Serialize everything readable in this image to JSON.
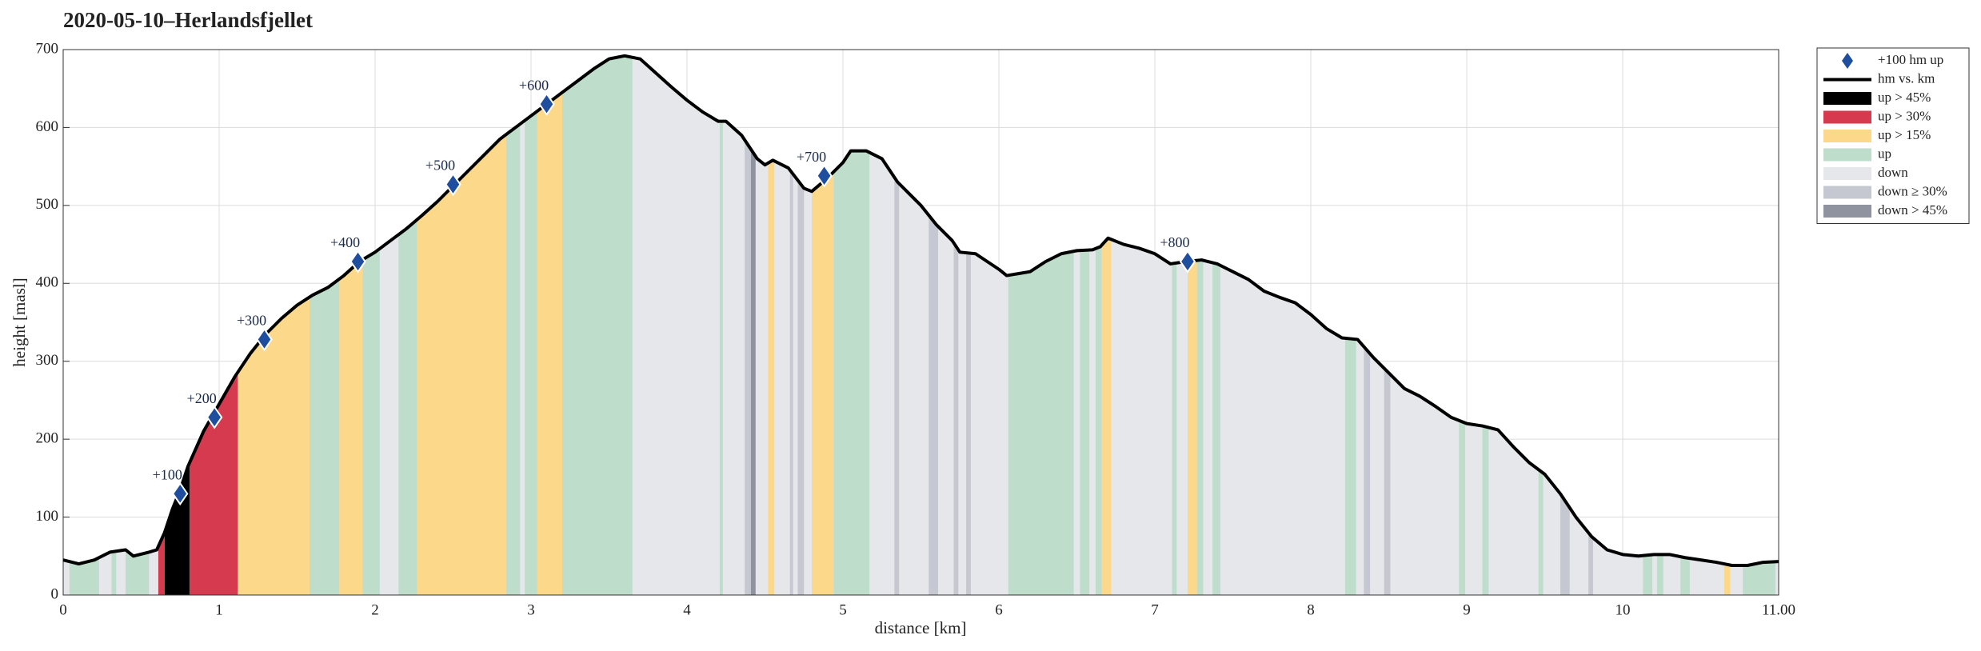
{
  "chart_data": {
    "type": "area",
    "title": "2020-05-10–Herlandsfjellet",
    "xlabel": "distance [km]",
    "ylabel": "height [masl]",
    "xlim": [
      0,
      11
    ],
    "ylim": [
      0,
      700
    ],
    "xticks": [
      0,
      1,
      2,
      3,
      4,
      5,
      6,
      7,
      8,
      9,
      10,
      {
        "value": 11,
        "label": "11.00"
      }
    ],
    "yticks": [
      0,
      100,
      200,
      300,
      400,
      500,
      600,
      700
    ],
    "grid": true,
    "base": {
      "name": "down",
      "color": "#e6e7ea"
    },
    "profile": {
      "name": "hm vs. km",
      "color": "#000000",
      "x": [
        0,
        0.1,
        0.2,
        0.3,
        0.4,
        0.45,
        0.55,
        0.6,
        0.65,
        0.7,
        0.75,
        0.8,
        0.9,
        1.0,
        1.1,
        1.2,
        1.3,
        1.4,
        1.5,
        1.6,
        1.7,
        1.8,
        1.9,
        2.0,
        2.1,
        2.2,
        2.3,
        2.4,
        2.5,
        2.6,
        2.7,
        2.8,
        2.9,
        3.0,
        3.1,
        3.2,
        3.3,
        3.4,
        3.5,
        3.6,
        3.7,
        3.8,
        3.9,
        4.0,
        4.1,
        4.2,
        4.25,
        4.35,
        4.45,
        4.5,
        4.55,
        4.65,
        4.75,
        4.8,
        4.9,
        5.0,
        5.05,
        5.15,
        5.25,
        5.35,
        5.5,
        5.6,
        5.7,
        5.75,
        5.85,
        6.0,
        6.05,
        6.2,
        6.3,
        6.4,
        6.5,
        6.6,
        6.65,
        6.7,
        6.8,
        6.9,
        7.0,
        7.1,
        7.2,
        7.3,
        7.4,
        7.5,
        7.6,
        7.7,
        7.8,
        7.9,
        8.0,
        8.1,
        8.2,
        8.3,
        8.4,
        8.5,
        8.6,
        8.7,
        8.8,
        8.9,
        9.0,
        9.1,
        9.2,
        9.3,
        9.4,
        9.5,
        9.6,
        9.7,
        9.8,
        9.9,
        10.0,
        10.1,
        10.2,
        10.3,
        10.4,
        10.5,
        10.6,
        10.7,
        10.8,
        10.9,
        11.0
      ],
      "values": [
        45,
        40,
        45,
        55,
        58,
        50,
        55,
        58,
        80,
        110,
        135,
        165,
        210,
        245,
        280,
        310,
        335,
        355,
        372,
        385,
        395,
        410,
        428,
        440,
        455,
        470,
        487,
        505,
        525,
        545,
        565,
        585,
        600,
        615,
        630,
        645,
        660,
        675,
        688,
        692,
        688,
        670,
        652,
        635,
        620,
        608,
        608,
        590,
        560,
        552,
        558,
        548,
        522,
        518,
        535,
        555,
        570,
        570,
        560,
        530,
        500,
        475,
        455,
        440,
        438,
        418,
        410,
        415,
        428,
        438,
        442,
        443,
        447,
        458,
        450,
        445,
        438,
        425,
        428,
        430,
        425,
        415,
        405,
        390,
        382,
        375,
        360,
        342,
        330,
        328,
        305,
        285,
        265,
        255,
        242,
        228,
        220,
        217,
        212,
        190,
        170,
        155,
        130,
        100,
        75,
        58,
        52,
        50,
        52,
        52,
        48,
        45,
        42,
        38,
        38,
        42,
        43
      ]
    },
    "bands": [
      {
        "name": "up > 45%",
        "color": "#000000",
        "segments": [
          [
            0.65,
            0.81
          ]
        ]
      },
      {
        "name": "up > 30%",
        "color": "#d63a4f",
        "segments": [
          [
            0.61,
            0.65
          ],
          [
            0.81,
            1.12
          ]
        ]
      },
      {
        "name": "up > 15%",
        "color": "#fcd98a",
        "segments": [
          [
            1.12,
            1.58
          ],
          [
            1.77,
            1.92
          ],
          [
            2.27,
            2.84
          ],
          [
            3.04,
            3.2
          ],
          [
            4.52,
            4.56
          ],
          [
            4.8,
            4.94
          ],
          [
            6.25,
            6.29
          ],
          [
            6.66,
            6.72
          ],
          [
            7.21,
            7.27
          ],
          [
            10.65,
            10.69
          ]
        ]
      },
      {
        "name": "up",
        "color": "#bfddcb",
        "segments": [
          [
            0.04,
            0.23
          ],
          [
            0.31,
            0.34
          ],
          [
            0.4,
            0.55
          ],
          [
            1.58,
            1.77
          ],
          [
            1.92,
            2.03
          ],
          [
            2.15,
            2.27
          ],
          [
            2.84,
            2.93
          ],
          [
            2.96,
            3.04
          ],
          [
            3.2,
            3.65
          ],
          [
            4.21,
            4.23
          ],
          [
            4.94,
            5.17
          ],
          [
            6.06,
            6.48
          ],
          [
            6.52,
            6.58
          ],
          [
            6.62,
            6.66
          ],
          [
            7.11,
            7.14
          ],
          [
            7.27,
            7.31
          ],
          [
            7.37,
            7.42
          ],
          [
            8.22,
            8.29
          ],
          [
            8.95,
            8.99
          ],
          [
            9.1,
            9.14
          ],
          [
            9.46,
            9.49
          ],
          [
            10.13,
            10.19
          ],
          [
            10.22,
            10.26
          ],
          [
            10.37,
            10.43
          ],
          [
            10.77,
            10.98
          ]
        ]
      },
      {
        "name": "down ≥ 30%",
        "color": "#c5c8d0",
        "segments": [
          [
            4.37,
            4.41
          ],
          [
            4.66,
            4.68
          ],
          [
            4.71,
            4.75
          ],
          [
            5.33,
            5.36
          ],
          [
            5.55,
            5.61
          ],
          [
            5.71,
            5.74
          ],
          [
            5.79,
            5.82
          ],
          [
            8.34,
            8.38
          ],
          [
            8.47,
            8.51
          ],
          [
            9.6,
            9.66
          ],
          [
            9.78,
            9.81
          ]
        ]
      },
      {
        "name": "down > 45%",
        "color": "#8e939f",
        "segments": [
          [
            4.41,
            4.44
          ]
        ]
      }
    ],
    "markers": {
      "name": "+100 hm up",
      "color": "#1f4e9f",
      "x": [
        0.75,
        0.97,
        1.29,
        1.89,
        2.5,
        3.1,
        4.88,
        7.21
      ],
      "values": [
        130,
        228,
        328,
        428,
        527,
        630,
        538,
        428
      ],
      "labels": [
        "+100",
        "+200",
        "+300",
        "+400",
        "+500",
        "+600",
        "+700",
        "+800"
      ]
    },
    "legend_order": [
      "markers",
      "profile",
      "bands.0",
      "bands.1",
      "bands.2",
      "bands.3",
      "base",
      "bands.4",
      "bands.5"
    ]
  }
}
